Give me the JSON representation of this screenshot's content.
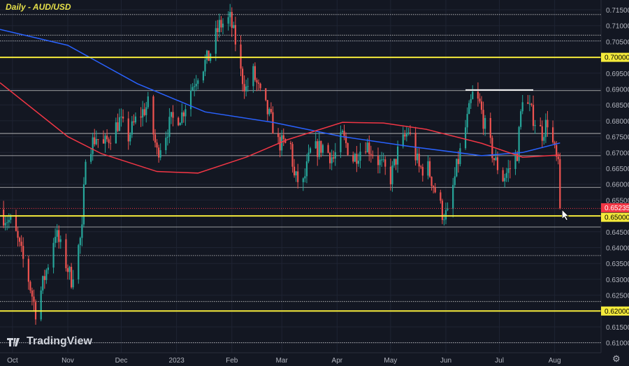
{
  "title": "Daily - AUD/USD",
  "brand": "TradingView",
  "settings_icon": "gear-icon",
  "chart_data": {
    "type": "candlestick",
    "instrument": "AUD/USD",
    "timeframe": "Daily",
    "ylim": [
      0.6075,
      0.7165
    ],
    "y_ticks": [
      "0.71500",
      "0.71000",
      "0.70500",
      "0.70000",
      "0.69500",
      "0.69000",
      "0.68500",
      "0.68000",
      "0.67500",
      "0.67000",
      "0.66500",
      "0.66000",
      "0.65500",
      "0.65000",
      "0.64500",
      "0.64000",
      "0.63500",
      "0.63000",
      "0.62500",
      "0.62000",
      "0.61500",
      "0.61000"
    ],
    "x_ticks": [
      {
        "label": "Oct",
        "date": "2022-10-01"
      },
      {
        "label": "Nov",
        "date": "2022-11-01"
      },
      {
        "label": "Dec",
        "date": "2022-12-01"
      },
      {
        "label": "2023",
        "date": "2023-01-01"
      },
      {
        "label": "Feb",
        "date": "2023-02-01"
      },
      {
        "label": "Mar",
        "date": "2023-03-01"
      },
      {
        "label": "Apr",
        "date": "2023-04-01"
      },
      {
        "label": "May",
        "date": "2023-05-01"
      },
      {
        "label": "Jun",
        "date": "2023-06-01"
      },
      {
        "label": "Jul",
        "date": "2023-07-01"
      },
      {
        "label": "Aug",
        "date": "2023-08-01"
      }
    ],
    "x_range": [
      "2022-09-24",
      "2023-08-27"
    ],
    "close_path": [
      [
        "2022-09-26",
        0.65
      ],
      [
        "2022-09-30",
        0.648
      ],
      [
        "2022-10-03",
        0.644
      ],
      [
        "2022-10-10",
        0.63
      ],
      [
        "2022-10-14",
        0.62
      ],
      [
        "2022-10-21",
        0.635
      ],
      [
        "2022-10-25",
        0.645
      ],
      [
        "2022-10-28",
        0.64
      ],
      [
        "2022-11-03",
        0.63
      ],
      [
        "2022-11-09",
        0.645
      ],
      [
        "2022-11-11",
        0.67
      ],
      [
        "2022-11-17",
        0.675
      ],
      [
        "2022-11-21",
        0.672
      ],
      [
        "2022-11-30",
        0.68
      ],
      [
        "2022-12-05",
        0.675
      ],
      [
        "2022-12-09",
        0.68
      ],
      [
        "2022-12-16",
        0.685
      ],
      [
        "2022-12-21",
        0.67
      ],
      [
        "2022-12-29",
        0.68
      ],
      [
        "2023-01-04",
        0.682
      ],
      [
        "2023-01-09",
        0.69
      ],
      [
        "2023-01-13",
        0.695
      ],
      [
        "2023-01-19",
        0.7
      ],
      [
        "2023-01-25",
        0.71
      ],
      [
        "2023-01-31",
        0.712
      ],
      [
        "2023-02-03",
        0.705
      ],
      [
        "2023-02-06",
        0.695
      ],
      [
        "2023-02-09",
        0.69
      ],
      [
        "2023-02-13",
        0.695
      ],
      [
        "2023-02-17",
        0.688
      ],
      [
        "2023-02-23",
        0.68
      ],
      [
        "2023-02-27",
        0.673
      ],
      [
        "2023-03-06",
        0.672
      ],
      [
        "2023-03-08",
        0.662
      ],
      [
        "2023-03-13",
        0.66
      ],
      [
        "2023-03-17",
        0.67
      ],
      [
        "2023-03-24",
        0.672
      ],
      [
        "2023-03-30",
        0.668
      ],
      [
        "2023-04-04",
        0.675
      ],
      [
        "2023-04-10",
        0.668
      ],
      [
        "2023-04-17",
        0.673
      ],
      [
        "2023-04-21",
        0.67
      ],
      [
        "2023-04-27",
        0.665
      ],
      [
        "2023-05-01",
        0.662
      ],
      [
        "2023-05-05",
        0.67
      ],
      [
        "2023-05-11",
        0.677
      ],
      [
        "2023-05-17",
        0.665
      ],
      [
        "2023-05-22",
        0.665
      ],
      [
        "2023-05-26",
        0.658
      ],
      [
        "2023-05-30",
        0.651
      ],
      [
        "2023-06-02",
        0.65
      ],
      [
        "2023-06-07",
        0.665
      ],
      [
        "2023-06-09",
        0.67
      ],
      [
        "2023-06-16",
        0.688
      ],
      [
        "2023-06-20",
        0.685
      ],
      [
        "2023-06-23",
        0.678
      ],
      [
        "2023-06-28",
        0.668
      ],
      [
        "2023-07-03",
        0.662
      ],
      [
        "2023-07-07",
        0.665
      ],
      [
        "2023-07-11",
        0.67
      ],
      [
        "2023-07-14",
        0.688
      ],
      [
        "2023-07-21",
        0.68
      ],
      [
        "2023-07-25",
        0.676
      ],
      [
        "2023-07-28",
        0.68
      ],
      [
        "2023-08-01",
        0.67
      ],
      [
        "2023-08-03",
        0.665
      ],
      [
        "2023-08-04",
        0.65235
      ]
    ],
    "moving_averages": [
      {
        "color": "#2962ff",
        "path": [
          [
            "2022-09-24",
            0.7088
          ],
          [
            "2022-11-01",
            0.7038
          ],
          [
            "2022-12-10",
            0.6917
          ],
          [
            "2023-01-17",
            0.6828
          ],
          [
            "2023-02-24",
            0.6795
          ],
          [
            "2023-04-04",
            0.675
          ],
          [
            "2023-05-13",
            0.6718
          ],
          [
            "2023-06-21",
            0.669
          ],
          [
            "2023-07-14",
            0.67
          ],
          [
            "2023-08-04",
            0.673
          ]
        ]
      },
      {
        "color": "#f23645",
        "path": [
          [
            "2022-09-24",
            0.692
          ],
          [
            "2022-11-01",
            0.675
          ],
          [
            "2022-11-20",
            0.6696
          ],
          [
            "2022-12-21",
            0.664
          ],
          [
            "2023-01-13",
            0.6635
          ],
          [
            "2023-02-09",
            0.6685
          ],
          [
            "2023-03-04",
            0.674
          ],
          [
            "2023-04-04",
            0.6795
          ],
          [
            "2023-04-27",
            0.6793
          ],
          [
            "2023-05-21",
            0.6773
          ],
          [
            "2023-06-21",
            0.6729
          ],
          [
            "2023-07-14",
            0.6685
          ],
          [
            "2023-08-04",
            0.6692
          ]
        ]
      }
    ],
    "yellow_levels": [
      0.7,
      0.65,
      0.62
    ],
    "white_levels": [
      0.7135,
      0.707,
      0.7052,
      0.6895,
      0.676,
      0.669,
      0.659,
      0.6465,
      0.6375,
      0.623,
      0.61
    ],
    "resistance_segment": {
      "price": 0.6897,
      "from": "2023-06-12",
      "to": "2023-07-20"
    },
    "last_price": "0.65235",
    "colors": {
      "up": "#26a69a",
      "down": "#ef5350",
      "yellow": "#f5eb3b",
      "background": "#131722",
      "last_price": "#f23645"
    }
  }
}
